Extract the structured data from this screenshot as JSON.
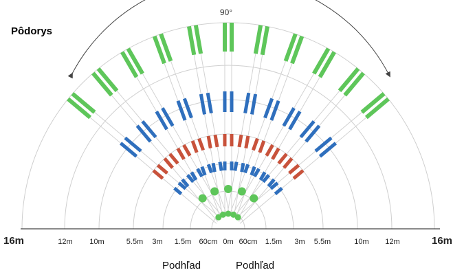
{
  "title": "Pôdorys",
  "angle_label": "90°",
  "captions": [
    "Podhľad",
    "Podhľad"
  ],
  "distance_labels_left": [
    "16m",
    "12m",
    "10m",
    "5.5m",
    "3m",
    "1.5m",
    "60cm"
  ],
  "center_label": "0m",
  "distance_labels_right": [
    "60cm",
    "1.5m",
    "3m",
    "5.5m",
    "10m",
    "12m",
    "16m"
  ],
  "colors": {
    "near_zone": "#5ec65a",
    "mid_zone_red": "#c8523b",
    "mid_zone_blue": "#2f6fbd",
    "far_zone": "#5ec65a",
    "arcs": "#cfcfcf",
    "rays": "#d2d2d2"
  }
}
